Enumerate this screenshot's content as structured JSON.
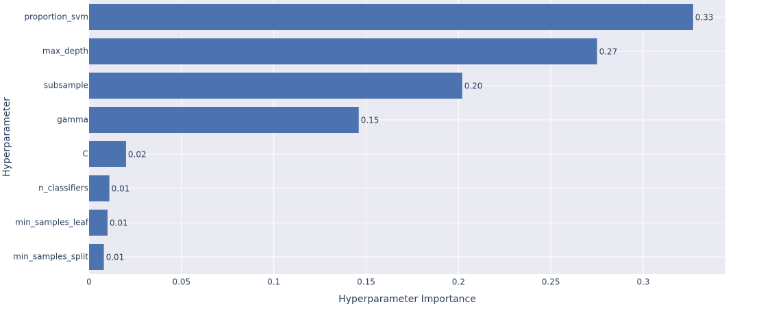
{
  "chart_data": {
    "type": "bar",
    "orientation": "horizontal",
    "categories": [
      "proportion_svm",
      "max_depth",
      "subsample",
      "gamma",
      "C",
      "n_classifiers",
      "min_samples_leaf",
      "min_samples_split"
    ],
    "values": [
      0.327,
      0.275,
      0.202,
      0.146,
      0.02,
      0.011,
      0.01,
      0.008
    ],
    "value_labels": [
      "0.33",
      "0.27",
      "0.20",
      "0.15",
      "0.02",
      "0.01",
      "0.01",
      "0.01"
    ],
    "xlabel": "Hyperparameter Importance",
    "ylabel": "Hyperparameter",
    "xlim": [
      0,
      0.3445
    ],
    "xticks": [
      0,
      0.05,
      0.1,
      0.15,
      0.2,
      0.25,
      0.3
    ],
    "xtick_labels": [
      "0",
      "0.05",
      "0.1",
      "0.15",
      "0.2",
      "0.25",
      "0.3"
    ],
    "grid": true,
    "colors": {
      "bar": "#4c72b0",
      "plot_bg": "#eaeaf2",
      "grid": "#ffffff",
      "text": "#2a3f5f"
    }
  }
}
